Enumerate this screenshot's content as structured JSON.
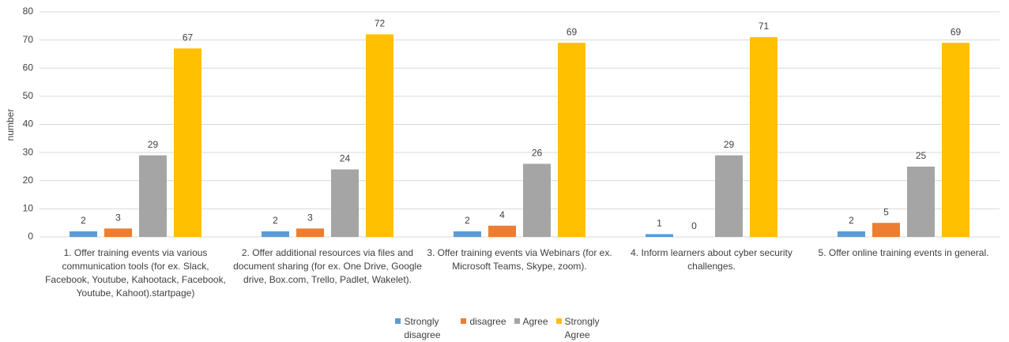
{
  "chart_data": {
    "type": "bar",
    "y_label": "number",
    "categories": [
      "1. Offer training events via various communication tools  (for ex. Slack, Facebook, Youtube, Kahootack, Facebook, Youtube, Kahoot).startpage)",
      "2. Offer additional resources via files and document sharing (for ex. One Drive, Google drive, Box.com, Trello, Padlet, Wakelet).",
      "3. Offer training events via Webinars (for ex. Microsoft Teams, Skype, zoom).",
      "4. Inform learners about cyber security challenges.",
      "5. Offer online training events in general."
    ],
    "series": [
      {
        "name": "Strongly disagree",
        "color": "#5b9bd5",
        "values": [
          2,
          2,
          2,
          1,
          2
        ]
      },
      {
        "name": "disagree",
        "color": "#ed7d31",
        "values": [
          3,
          3,
          4,
          0,
          5
        ]
      },
      {
        "name": "Agree",
        "color": "#a5a5a5",
        "values": [
          29,
          24,
          26,
          29,
          25
        ]
      },
      {
        "name": "Strongly Agree",
        "color": "#ffc000",
        "values": [
          67,
          72,
          69,
          71,
          69
        ]
      }
    ],
    "ylim": [
      0,
      80
    ],
    "yticks": [
      0,
      10,
      20,
      30,
      40,
      50,
      60,
      70,
      80
    ],
    "grid": true,
    "legend": "bottom"
  }
}
